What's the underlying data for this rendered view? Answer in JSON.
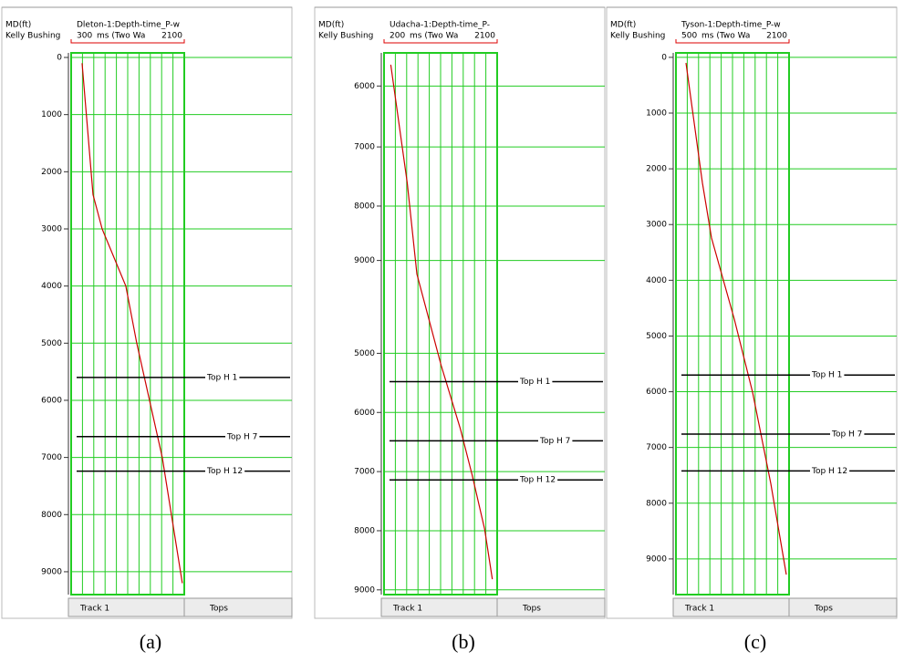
{
  "chart_data": [
    {
      "type": "line",
      "y_label": "MD(ft)",
      "reference": "Kelly Bushing",
      "x_label": "ms (Two Wa",
      "xlim": [
        300,
        2100
      ],
      "xticks": [
        300,
        2100
      ],
      "ylim": [
        -80,
        9400
      ],
      "yticks": [
        0,
        1000,
        2000,
        3000,
        4000,
        5000,
        6000,
        7000,
        8000,
        9000
      ],
      "y_inverted": true,
      "grid": true,
      "series": [
        {
          "name": "Dleton-1:Depth-time_P-w",
          "color": "#cc0000",
          "x": [
            474,
            648,
            793,
            1170,
            1344,
            1750,
            2069
          ],
          "values": [
            100,
            2400,
            3000,
            4000,
            5000,
            7000,
            9200
          ]
        }
      ],
      "tops": [
        {
          "name": "Top H 1",
          "depth": 5600
        },
        {
          "name": "Top H 7",
          "depth": 6635
        },
        {
          "name": "Top H 12",
          "depth": 7240
        }
      ],
      "tracks": [
        "Track 1",
        "Tops"
      ],
      "caption": "(a)"
    },
    {
      "type": "line",
      "y_label": "MD(ft)",
      "reference": "Kelly Bushing",
      "x_label": "ms (Two Wa",
      "xlim": [
        200,
        2100
      ],
      "xticks": [
        200,
        2100
      ],
      "ylim": [
        -80,
        9080
      ],
      "yticks": [
        {
          "value": 480,
          "label": "6000"
        },
        {
          "value": 1510,
          "label": "7000"
        },
        {
          "value": 2510,
          "label": "8000"
        },
        {
          "value": 3430,
          "label": "9000"
        },
        5000,
        6000,
        7000,
        8000,
        9000
      ],
      "y_inverted": true,
      "grid": true,
      "series": [
        {
          "name": "Udacha-1:Depth-time_P-",
          "color": "#cc0000",
          "x": [
            313,
            590,
            752,
            1158,
            1483,
            1678,
            1889,
            2019
          ],
          "values": [
            120,
            2120,
            3660,
            5200,
            6280,
            7050,
            7970,
            8820
          ]
        }
      ],
      "tops": [
        {
          "name": "Top H 1",
          "depth": 5480
        },
        {
          "name": "Top H 7",
          "depth": 6480
        },
        {
          "name": "Top H 12",
          "depth": 7140
        }
      ],
      "tracks": [
        "Track 1",
        "Tops"
      ],
      "caption": "(b)"
    },
    {
      "type": "line",
      "y_label": "MD(ft)",
      "reference": "Kelly Bushing",
      "x_label": "ms (Two Wa",
      "xlim": [
        500,
        2100
      ],
      "xticks": [
        500,
        2100
      ],
      "ylim": [
        -80,
        9640
      ],
      "yticks": [
        0,
        1000,
        2000,
        3000,
        4000,
        5000,
        6000,
        7000,
        8000,
        9000
      ],
      "y_inverted": true,
      "grid": true,
      "series": [
        {
          "name": "Tyson-1:Depth-time_P-w",
          "color": "#cc0000",
          "x": [
            642,
            874,
            1003,
            1326,
            1584,
            1842,
            2061
          ],
          "values": [
            100,
            2250,
            3240,
            4700,
            6010,
            7650,
            9280
          ]
        }
      ],
      "tops": [
        {
          "name": "Top H 1",
          "depth": 5700
        },
        {
          "name": "Top H 7",
          "depth": 6760
        },
        {
          "name": "Top H 12",
          "depth": 7420
        }
      ],
      "tracks": [
        "Track 1",
        "Tops"
      ],
      "caption": "(c)"
    }
  ]
}
